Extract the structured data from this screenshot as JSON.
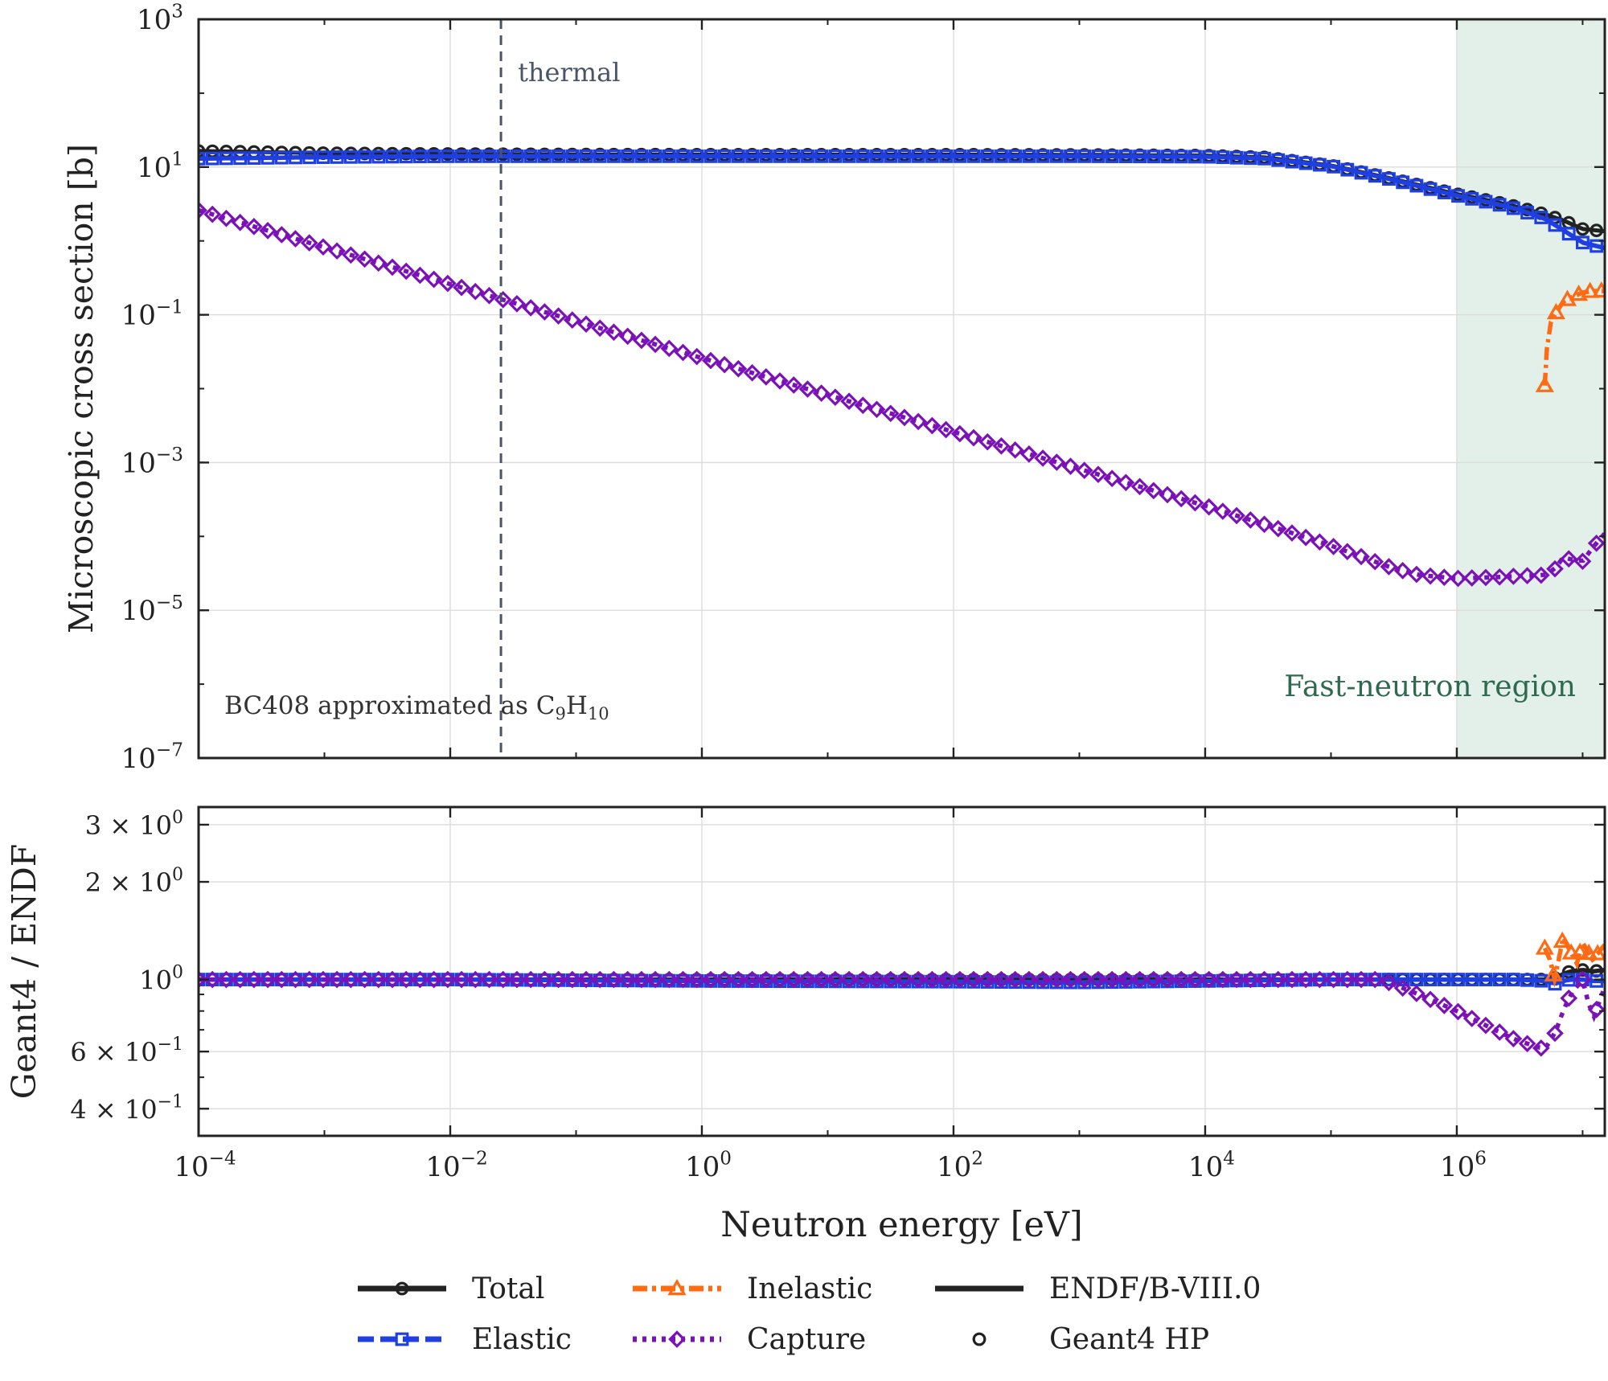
{
  "chart_data": [
    {
      "type": "line",
      "panel": "top",
      "title": "",
      "xlabel": "",
      "ylabel": "Microscopic cross section [b]",
      "xscale": "log",
      "yscale": "log",
      "xlim": [
        0.0001,
        15000000
      ],
      "ylim": [
        1e-07,
        1000
      ],
      "x_ticks": [
        {
          "value": 0.0001,
          "base": "10",
          "exp": "−4"
        },
        {
          "value": 0.01,
          "base": "10",
          "exp": "−2"
        },
        {
          "value": 1,
          "base": "10",
          "exp": "0"
        },
        {
          "value": 100,
          "base": "10",
          "exp": "2"
        },
        {
          "value": 10000,
          "base": "10",
          "exp": "4"
        },
        {
          "value": 1000000,
          "base": "10",
          "exp": "6"
        }
      ],
      "y_ticks": [
        {
          "value": 1000,
          "base": "10",
          "exp": "3"
        },
        {
          "value": 10,
          "base": "10",
          "exp": "1"
        },
        {
          "value": 0.1,
          "base": "10",
          "exp": "−1"
        },
        {
          "value": 0.001,
          "base": "10",
          "exp": "−3"
        },
        {
          "value": 1e-05,
          "base": "10",
          "exp": "−5"
        },
        {
          "value": 1e-07,
          "base": "10",
          "exp": "−7"
        }
      ],
      "grid": true,
      "shaded_region": {
        "x_range": [
          1000000,
          15000000
        ],
        "label": "Fast-neutron region",
        "color": "#e3f0ea"
      },
      "vline": {
        "x": 0.0253,
        "label": "thermal",
        "color": "#4a5568",
        "style": "dashed"
      },
      "annotation": {
        "text": "BC408 approximated as C",
        "sub1": "9",
        "mid": "H",
        "sub2": "10"
      },
      "series": [
        {
          "name": "Total",
          "color": "#222222",
          "marker": "circle",
          "x": [
            0.0001,
            0.001,
            0.01,
            0.1,
            1,
            10,
            100,
            1000,
            10000,
            30000,
            100000,
            300000,
            1000000,
            2000000,
            3000000,
            5000000,
            7000000,
            10000000,
            15000000
          ],
          "y": [
            16.5,
            15.4,
            15.0,
            14.8,
            14.7,
            14.7,
            14.7,
            14.6,
            14.3,
            13.5,
            10.5,
            7.0,
            4.3,
            3.4,
            2.9,
            2.3,
            1.9,
            1.45,
            1.35
          ]
        },
        {
          "name": "Elastic",
          "color": "#1f3fe0",
          "marker": "square",
          "x": [
            0.0001,
            0.001,
            0.01,
            0.1,
            1,
            10,
            100,
            1000,
            10000,
            30000,
            100000,
            300000,
            1000000,
            2000000,
            3000000,
            5000000,
            7000000,
            10000000,
            15000000
          ],
          "y": [
            13.0,
            13.6,
            14.0,
            14.0,
            14.0,
            14.0,
            14.0,
            14.0,
            13.8,
            13.0,
            10.3,
            6.8,
            4.1,
            3.2,
            2.7,
            2.0,
            1.4,
            0.95,
            0.8
          ]
        },
        {
          "name": "Inelastic",
          "color": "#ff6a13",
          "marker": "triangle",
          "x": [
            5000000,
            5200000,
            5600000,
            6000000,
            7000000,
            8000000,
            10000000,
            12000000,
            15000000
          ],
          "y": [
            0.011,
            0.035,
            0.08,
            0.1,
            0.15,
            0.17,
            0.2,
            0.21,
            0.21
          ]
        },
        {
          "name": "Capture",
          "color": "#7a12b8",
          "marker": "diamond",
          "x": [
            0.0001,
            0.001,
            0.01,
            0.1,
            1,
            10,
            100,
            1000,
            10000,
            50000,
            100000,
            300000,
            500000,
            1000000,
            2000000,
            3000000,
            5000000,
            6000000,
            7000000,
            8000000,
            10000000,
            12000000,
            15000000
          ],
          "y": [
            2.6,
            0.82,
            0.26,
            0.082,
            0.026,
            0.0082,
            0.0026,
            0.00082,
            0.00026,
            0.00011,
            7.5e-05,
            3.8e-05,
            3e-05,
            2.7e-05,
            2.8e-05,
            2.9e-05,
            3e-05,
            3.6e-05,
            5.2e-05,
            4.9e-05,
            4.6e-05,
            7e-05,
            0.00011
          ]
        }
      ]
    },
    {
      "type": "line",
      "panel": "bottom",
      "title": "",
      "xlabel": "Neutron energy [eV]",
      "ylabel": "Geant4 / ENDF",
      "xscale": "log",
      "yscale": "log",
      "xlim": [
        0.0001,
        15000000
      ],
      "ylim": [
        0.33,
        3.4
      ],
      "y_ticks": [
        {
          "value": 3,
          "label": "3 × 10",
          "exp": "0"
        },
        {
          "value": 2,
          "label": "2 × 10",
          "exp": "0"
        },
        {
          "value": 1,
          "label": "10",
          "exp": "0"
        },
        {
          "value": 0.6,
          "label": "6 × 10",
          "exp": "−1"
        },
        {
          "value": 0.4,
          "label": "4 × 10",
          "exp": "−1"
        }
      ],
      "grid": true,
      "series": [
        {
          "name": "Total",
          "color": "#222222",
          "marker": "circle",
          "x": [
            0.0001,
            1,
            10000,
            300000,
            1000000,
            3000000,
            5000000,
            6000000,
            7000000,
            8000000,
            10000000,
            12000000,
            15000000
          ],
          "y": [
            1.0,
            1.0,
            1.0,
            1.0,
            1.0,
            1.0,
            1.0,
            1.01,
            1.04,
            1.06,
            1.07,
            1.06,
            1.07
          ]
        },
        {
          "name": "Elastic",
          "color": "#1f3fe0",
          "marker": "square",
          "x": [
            0.0001,
            0.01,
            1,
            100,
            1000,
            10000,
            100000,
            1000000,
            3000000,
            5000000,
            6000000,
            7000000,
            8000000,
            10000000,
            12000000,
            15000000
          ],
          "y": [
            1.0,
            1.0,
            0.99,
            0.985,
            0.98,
            0.99,
            1.0,
            1.0,
            1.0,
            0.99,
            0.97,
            0.99,
            1.0,
            1.0,
            0.99,
            0.99
          ]
        },
        {
          "name": "Inelastic",
          "color": "#ff6a13",
          "marker": "triangle",
          "x": [
            5000000,
            5500000,
            6000000,
            7000000,
            8000000,
            9000000,
            10000000,
            12000000,
            15000000
          ],
          "y": [
            1.25,
            1.15,
            1.0,
            1.35,
            1.22,
            1.12,
            1.3,
            1.15,
            1.28
          ]
        },
        {
          "name": "Capture",
          "color": "#7a12b8",
          "marker": "diamond",
          "x": [
            0.0001,
            0.01,
            1,
            100,
            10000,
            100000,
            250000,
            500000,
            1000000,
            2000000,
            3000000,
            5000000,
            6000000,
            7000000,
            8000000,
            10000000,
            12000000,
            15000000
          ],
          "y": [
            1.0,
            1.0,
            1.0,
            1.0,
            1.0,
            1.0,
            1.0,
            0.9,
            0.8,
            0.7,
            0.65,
            0.61,
            0.68,
            0.8,
            0.9,
            1.0,
            0.75,
            0.95
          ]
        }
      ]
    }
  ],
  "legend": {
    "placement": "bottom",
    "entries": [
      {
        "label": "Total",
        "color": "#222222",
        "marker": "circle",
        "dash": ""
      },
      {
        "label": "Inelastic",
        "color": "#ff6a13",
        "marker": "triangle",
        "dash": "18,6,5,6"
      },
      {
        "label": "ENDF/B-VIII.0",
        "color": "#222222",
        "marker": "none",
        "dash": ""
      },
      {
        "label": "Elastic",
        "color": "#1f3fe0",
        "marker": "square",
        "dash": "20,8"
      },
      {
        "label": "Capture",
        "color": "#7a12b8",
        "marker": "diamond",
        "dash": "5,7"
      },
      {
        "label": "Geant4 HP",
        "color": "#222222",
        "marker": "circle-only",
        "dash": ""
      }
    ]
  }
}
